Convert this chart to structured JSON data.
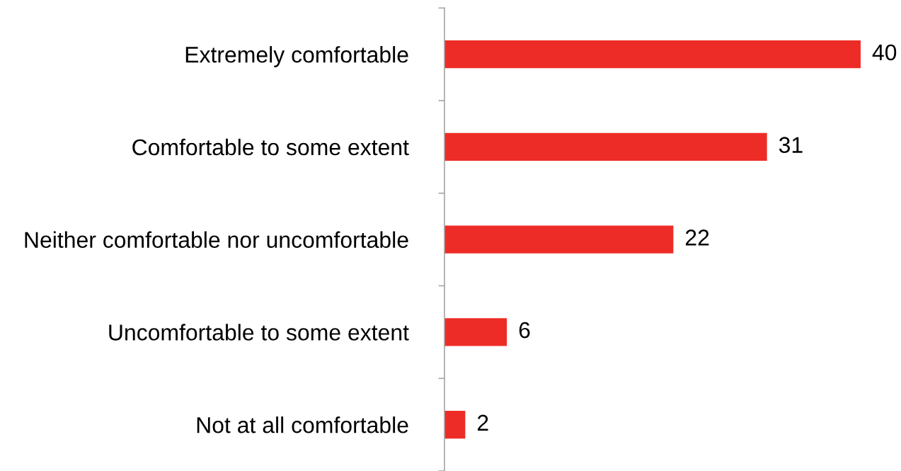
{
  "chart_data": {
    "type": "bar",
    "orientation": "horizontal",
    "categories": [
      "Extremely comfortable",
      "Comfortable to some extent",
      "Neither comfortable nor uncomfortable",
      "Uncomfortable to some extent",
      "Not at all comfortable"
    ],
    "values": [
      40,
      31,
      22,
      6,
      2
    ],
    "color": "#ee2c27",
    "data_labels": true,
    "grid": false,
    "legend": false,
    "tick_labels": "y"
  }
}
